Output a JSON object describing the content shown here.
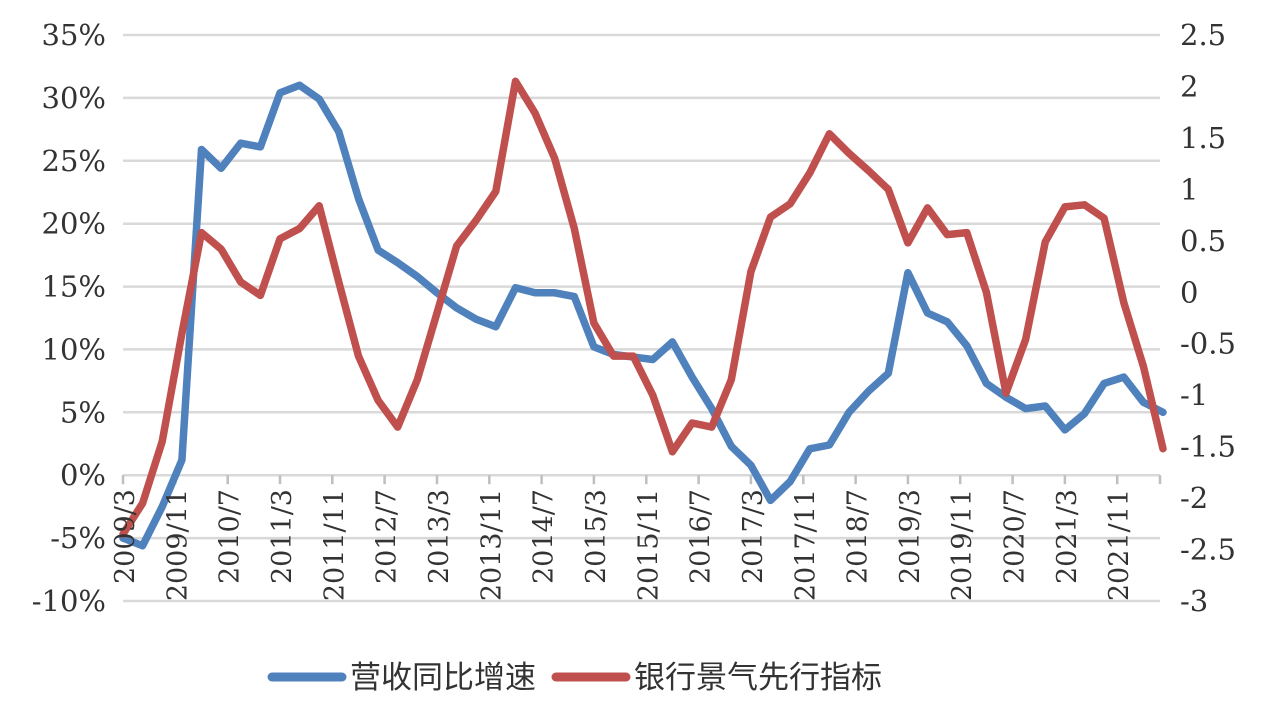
{
  "figure": {
    "background": "#ffffff",
    "legend": [
      {
        "label": "营收同比增速",
        "color": "#4F81BD"
      },
      {
        "label": "银行景气先行指标",
        "color": "#C0504D"
      }
    ]
  },
  "chart_data": {
    "type": "line",
    "title": "",
    "xlabel": "",
    "ylabel_left": "",
    "ylabel_right": "",
    "grid": true,
    "legend_position": "bottom",
    "colors": {
      "series_blue": "#4F81BD",
      "series_red": "#C0504D",
      "gridline": "#D9D9D9",
      "tick": "#BFBFBF",
      "text": "#333333"
    },
    "x": [
      "2009/3",
      "2009/6",
      "2009/9",
      "2009/12",
      "2010/3",
      "2010/6",
      "2010/9",
      "2010/12",
      "2011/3",
      "2011/6",
      "2011/9",
      "2011/12",
      "2012/3",
      "2012/6",
      "2012/9",
      "2012/12",
      "2013/3",
      "2013/6",
      "2013/9",
      "2013/12",
      "2014/3",
      "2014/6",
      "2014/9",
      "2014/12",
      "2015/3",
      "2015/6",
      "2015/9",
      "2015/12",
      "2016/3",
      "2016/6",
      "2016/9",
      "2016/12",
      "2017/3",
      "2017/6",
      "2017/9",
      "2017/12",
      "2018/3",
      "2018/6",
      "2018/9",
      "2018/12",
      "2019/3",
      "2019/6",
      "2019/9",
      "2019/12",
      "2020/3",
      "2020/6",
      "2020/9",
      "2020/12",
      "2021/3",
      "2021/6",
      "2021/9",
      "2021/12",
      "2022/3",
      "2022/6"
    ],
    "series": [
      {
        "name": "营收同比增速",
        "axis": "left",
        "unit": "%",
        "color": "#4F81BD",
        "values": [
          -5.0,
          -5.6,
          -2.5,
          1.2,
          25.9,
          24.4,
          26.4,
          26.1,
          30.4,
          31.0,
          29.9,
          27.3,
          22.0,
          17.9,
          16.9,
          15.8,
          14.5,
          13.3,
          12.4,
          11.8,
          14.9,
          14.5,
          14.5,
          14.2,
          10.2,
          9.6,
          9.4,
          9.2,
          10.6,
          7.8,
          5.3,
          2.3,
          0.8,
          -2.0,
          -0.5,
          2.1,
          2.4,
          5.0,
          6.7,
          8.1,
          16.1,
          12.9,
          12.2,
          10.3,
          7.3,
          6.2,
          5.3,
          5.5,
          3.6,
          4.9,
          7.3,
          7.8,
          5.8,
          5.0
        ]
      },
      {
        "name": "银行景气先行指标",
        "axis": "right",
        "unit": "",
        "color": "#C0504D",
        "values": [
          -2.35,
          -2.05,
          -1.45,
          -0.4,
          0.58,
          0.42,
          0.1,
          -0.03,
          0.52,
          0.62,
          0.84,
          0.1,
          -0.62,
          -1.05,
          -1.31,
          -0.85,
          -0.2,
          0.45,
          0.7,
          0.98,
          2.05,
          1.74,
          1.3,
          0.62,
          -0.3,
          -0.62,
          -0.62,
          -1.0,
          -1.55,
          -1.27,
          -1.31,
          -0.85,
          0.2,
          0.73,
          0.86,
          1.16,
          1.54,
          1.35,
          1.18,
          1.0,
          0.48,
          0.82,
          0.56,
          0.58,
          0.0,
          -0.98,
          -0.46,
          0.49,
          0.83,
          0.85,
          0.72,
          -0.1,
          -0.72,
          -1.52
        ]
      }
    ],
    "left_axis": {
      "min": -10,
      "max": 35,
      "step": 5,
      "tick_labels": [
        "35%",
        "30%",
        "25%",
        "20%",
        "15%",
        "10%",
        "5%",
        "0%",
        "-5%",
        "-10%"
      ]
    },
    "right_axis": {
      "min": -3,
      "max": 2.5,
      "step": 0.5,
      "tick_labels": [
        "2.5",
        "2",
        "1.5",
        "1",
        "0.5",
        "0",
        "-0.5",
        "-1",
        "-1.5",
        "-2",
        "-2.5",
        "-3"
      ]
    },
    "xtick_labels": [
      "2009/3",
      "2009/11",
      "2010/7",
      "2011/3",
      "2011/11",
      "2012/7",
      "2013/3",
      "2013/11",
      "2014/7",
      "2015/3",
      "2015/11",
      "2016/7",
      "2017/3",
      "2017/11",
      "2018/7",
      "2019/3",
      "2019/11",
      "2020/7",
      "2021/3",
      "2021/11"
    ],
    "xtick_interval_months": 8,
    "data_interval_months": 3
  }
}
